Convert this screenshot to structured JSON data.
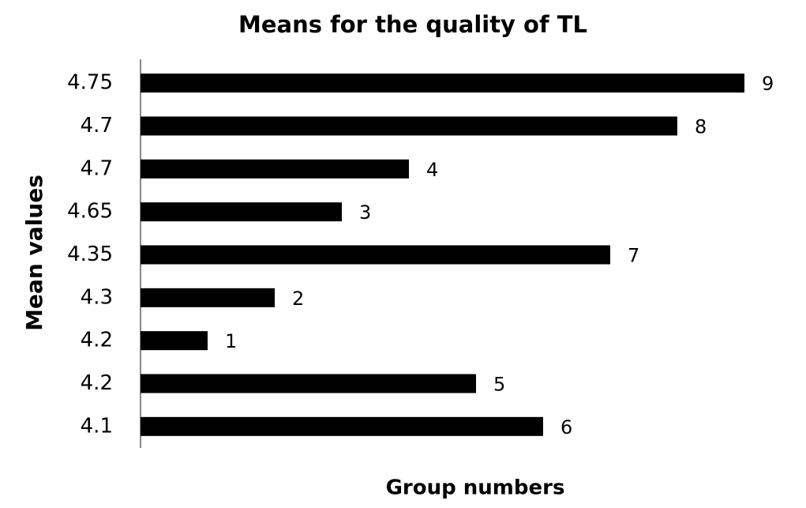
{
  "chart_data": {
    "type": "bar",
    "orientation": "horizontal",
    "title": "Means for the quality of TL",
    "x_label": "Group numbers",
    "y_label": "Mean values",
    "categories": [
      "4.75",
      "4.7",
      "4.7",
      "4.65",
      "4.35",
      "4.3",
      "4.2",
      "4.2",
      "4.1"
    ],
    "values": [
      9,
      8,
      4,
      3,
      7,
      2,
      1,
      5,
      6
    ],
    "color": "#000000"
  }
}
